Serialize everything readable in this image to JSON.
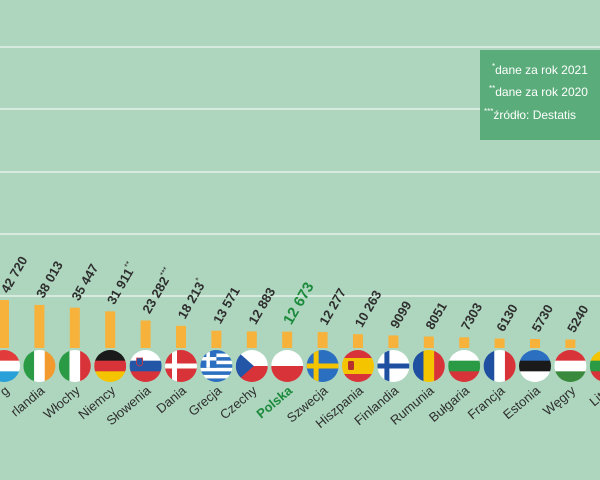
{
  "chart_data": {
    "type": "bar",
    "categories": [
      "Luksemburg",
      "Irlandia",
      "Włochy",
      "Niemcy",
      "Słowenia",
      "Dania",
      "Grecja",
      "Czechy",
      "Polska",
      "Szwecja",
      "Hiszpania",
      "Finlandia",
      "Rumunia",
      "Bułgaria",
      "Francja",
      "Estonia",
      "Węgry",
      "Litwa"
    ],
    "visible_labels": [
      "g",
      "rlandia",
      "Włochy",
      "Niemcy",
      "Słowenia",
      "Dania",
      "Grecja",
      "Czechy",
      "Polska",
      "Szwecja",
      "Hiszpania",
      "Finlandia",
      "Rumunia",
      "Bułgaria",
      "Francja",
      "Estonia",
      "Węgry",
      "Litw"
    ],
    "values": [
      42720,
      38013,
      35447,
      31911,
      23282,
      18213,
      13571,
      12883,
      12673,
      12277,
      10263,
      9099,
      8051,
      7303,
      6130,
      5730,
      5240,
      4700
    ],
    "value_labels": [
      "42 720",
      "38 013",
      "35 447",
      "31 911",
      "23 282",
      "18 213",
      "13 571",
      "12 883",
      "12 673",
      "12 277",
      "10 263",
      "9099",
      "8051",
      "7303",
      "6130",
      "5730",
      "5240",
      ""
    ],
    "value_marks": [
      "",
      "",
      "",
      "**",
      "***",
      "*",
      "",
      "",
      "",
      "",
      "",
      "",
      "",
      "",
      "",
      "",
      "",
      ""
    ],
    "flags": [
      "luxembourg-flag",
      "ireland-flag",
      "italy-flag",
      "germany-flag",
      "slovenia-flag",
      "denmark-flag",
      "greece-flag",
      "czech-flag",
      "poland-flag",
      "sweden-flag",
      "spain-flag",
      "finland-flag",
      "romania-flag",
      "bulgaria-flag",
      "france-flag",
      "estonia-flag",
      "hungary-flag",
      "lithuania-flag"
    ],
    "highlight": "Polska",
    "title": "",
    "xlabel": "",
    "ylabel": "",
    "ylim": [
      0,
      100000
    ],
    "grid": true,
    "colors": {
      "background": "#aed6be",
      "bar": "#f7b23b",
      "grid": "#ffffff",
      "label": "#2e2e2e",
      "highlight": "#1c8a3c",
      "note_box": "#5aac7a"
    }
  },
  "notes": [
    {
      "mark": "*",
      "text": "dane za rok 2021"
    },
    {
      "mark": "**",
      "text": "dane za rok 2020"
    },
    {
      "mark": "***",
      "text": "źródło: Destatis"
    }
  ]
}
